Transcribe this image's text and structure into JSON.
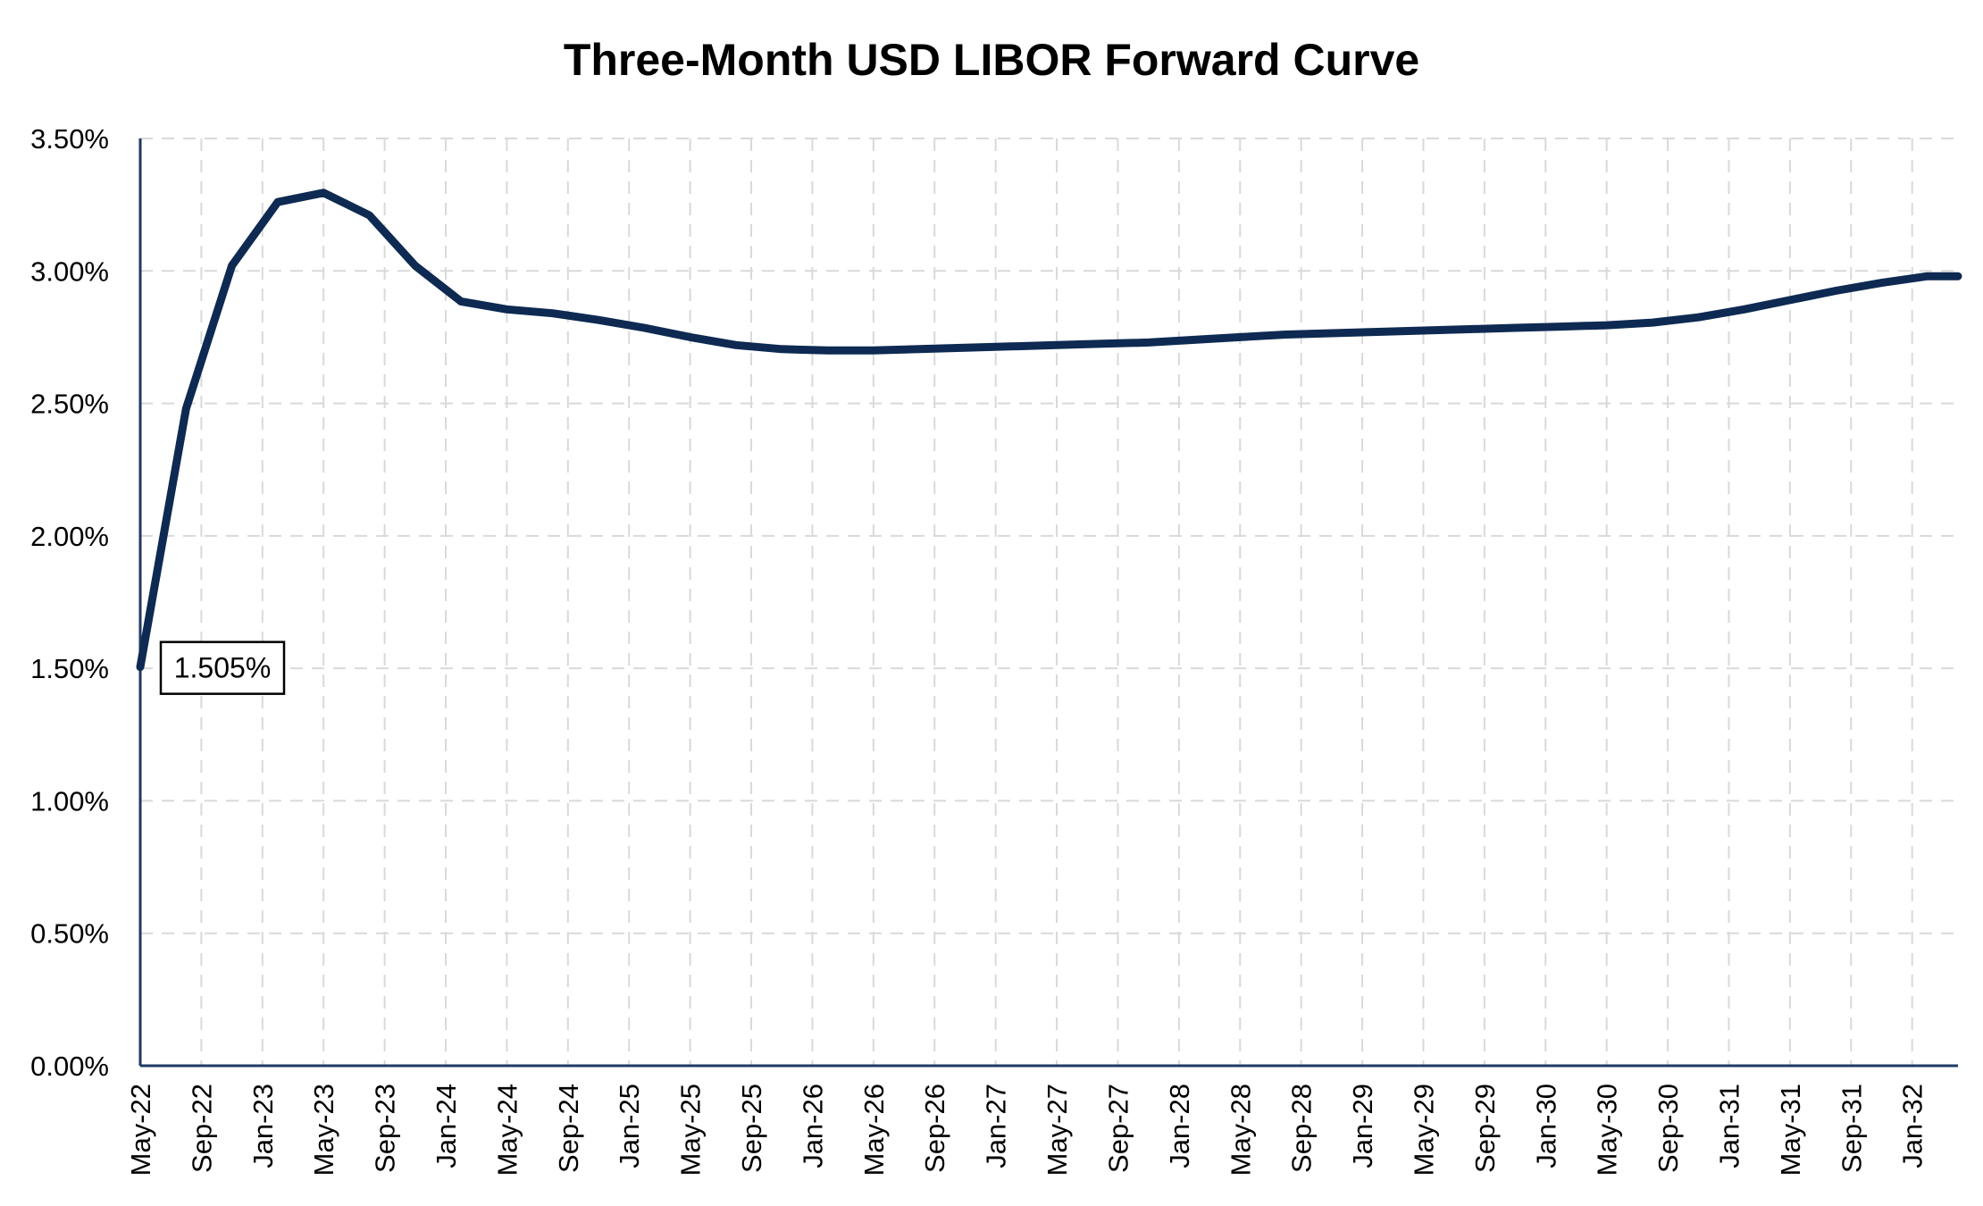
{
  "chart_data": {
    "type": "line",
    "title": "Three-Month USD LIBOR Forward Curve",
    "xlabel": "",
    "ylabel": "",
    "ylim": [
      0,
      3.5
    ],
    "yticks": [
      "0.00%",
      "0.50%",
      "1.00%",
      "1.50%",
      "2.00%",
      "2.50%",
      "3.00%",
      "3.50%"
    ],
    "yticks_values": [
      0,
      0.5,
      1.0,
      1.5,
      2.0,
      2.5,
      3.0,
      3.5
    ],
    "xticks": [
      "May-22",
      "Sep-22",
      "Jan-23",
      "May-23",
      "Sep-23",
      "Jan-24",
      "May-24",
      "Sep-24",
      "Jan-25",
      "May-25",
      "Sep-25",
      "Jan-26",
      "May-26",
      "Sep-26",
      "Jan-27",
      "May-27",
      "Sep-27",
      "Jan-28",
      "May-28",
      "Sep-28",
      "Jan-29",
      "May-29",
      "Sep-29",
      "Jan-30",
      "May-30",
      "Sep-30",
      "Jan-31",
      "May-31",
      "Sep-31",
      "Jan-32"
    ],
    "grid": true,
    "legend": "none",
    "line_color": "#0e2a52",
    "series": [
      {
        "x": [
          "May-22",
          "Aug-22",
          "Nov-22",
          "Feb-23",
          "May-23",
          "Aug-23",
          "Nov-23",
          "Feb-24",
          "May-24",
          "Aug-24",
          "Nov-24",
          "Feb-25",
          "May-25",
          "Aug-25",
          "Nov-25",
          "Feb-26",
          "May-26",
          "Aug-26",
          "Nov-26",
          "Feb-27",
          "May-27",
          "Aug-27",
          "Nov-27",
          "Feb-28",
          "May-28",
          "Aug-28",
          "Nov-28",
          "Feb-29",
          "May-29",
          "Aug-29",
          "Nov-29",
          "Feb-30",
          "May-30",
          "Aug-30",
          "Nov-30",
          "Feb-31",
          "May-31",
          "Aug-31",
          "Nov-31",
          "Feb-32",
          "Apr-32"
        ],
        "values": [
          1.505,
          2.48,
          3.02,
          3.26,
          3.295,
          3.21,
          3.02,
          2.885,
          2.855,
          2.84,
          2.815,
          2.785,
          2.75,
          2.72,
          2.705,
          2.7,
          2.7,
          2.705,
          2.71,
          2.715,
          2.72,
          2.725,
          2.73,
          2.74,
          2.75,
          2.76,
          2.765,
          2.77,
          2.775,
          2.78,
          2.785,
          2.79,
          2.795,
          2.805,
          2.825,
          2.855,
          2.89,
          2.925,
          2.955,
          2.98,
          2.98
        ]
      }
    ],
    "annotation": {
      "text": "1.505%"
    }
  }
}
